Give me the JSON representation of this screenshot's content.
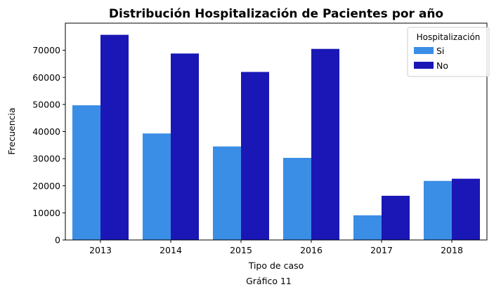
{
  "chart_data": {
    "type": "bar",
    "title": "Distribución Hospitalización de Pacientes por año",
    "xlabel": "Tipo de caso",
    "ylabel": "Frecuencia",
    "categories": [
      "2013",
      "2014",
      "2015",
      "2016",
      "2017",
      "2018"
    ],
    "series": [
      {
        "name": "Si",
        "color": "#3a8ee6",
        "values": [
          49700,
          39300,
          34500,
          30300,
          9100,
          21800
        ]
      },
      {
        "name": "No",
        "color": "#1a17b6",
        "values": [
          75700,
          68800,
          62000,
          70500,
          16300,
          22600
        ]
      }
    ],
    "ylim": [
      0,
      80000
    ],
    "yticks": [
      0,
      10000,
      20000,
      30000,
      40000,
      50000,
      60000,
      70000
    ],
    "grid": false,
    "legend": {
      "title": "Hospitalización",
      "placement": "top-right"
    }
  },
  "caption": "Gráfico 11"
}
